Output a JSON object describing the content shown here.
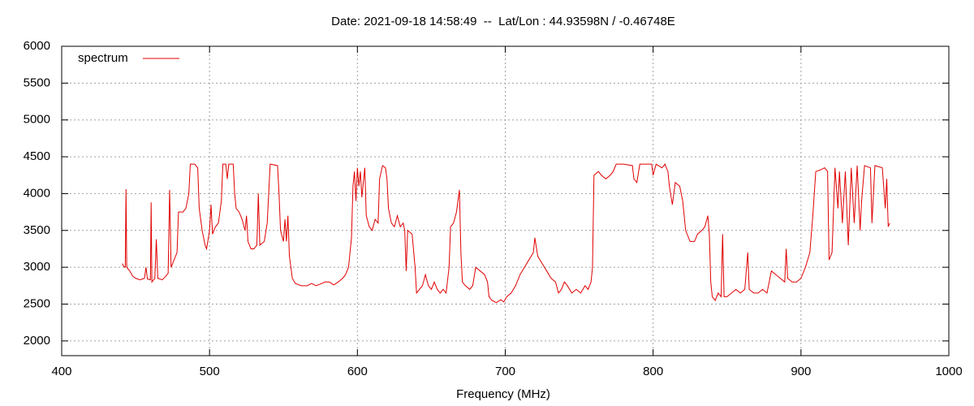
{
  "chart_data": {
    "type": "line",
    "title": "Date: 2021-09-18 14:58:49  --  Lat/Lon : 44.93598N / -0.46748E",
    "xlabel": "Frequency (MHz)",
    "xlim": [
      400,
      1000
    ],
    "xticks": [
      400,
      500,
      600,
      700,
      800,
      900,
      1000
    ],
    "ylim": [
      1800,
      6000
    ],
    "yticks": [
      2000,
      2500,
      3000,
      3500,
      4000,
      4500,
      5000,
      5500,
      6000
    ],
    "grid": true,
    "legend": "top-left",
    "x": [
      441,
      442,
      443,
      443.5,
      444,
      446,
      448,
      450,
      453,
      456,
      457,
      458,
      460,
      460.5,
      461,
      463,
      464,
      465,
      468,
      470,
      472,
      473,
      474,
      476,
      478,
      479,
      482,
      484,
      486,
      487,
      490,
      492,
      493,
      495,
      497,
      498,
      500,
      501,
      502,
      504,
      506,
      508,
      509,
      511,
      512,
      513,
      516,
      517,
      518,
      520,
      522,
      524,
      525,
      526,
      528,
      530,
      532,
      533,
      534,
      537,
      539,
      540,
      541,
      546,
      547,
      548,
      550,
      551,
      552,
      553,
      554,
      556,
      558,
      562,
      566,
      569,
      572,
      576,
      578,
      581,
      584,
      587,
      590,
      592,
      594,
      596,
      597,
      598,
      599,
      600,
      601,
      602,
      603,
      605,
      606,
      608,
      610,
      612,
      614,
      615,
      617,
      619,
      620,
      621,
      623,
      625,
      627,
      629,
      631,
      632,
      633,
      634,
      637,
      639,
      640,
      642,
      644,
      646,
      648,
      650,
      652,
      654,
      656,
      658,
      660,
      662,
      663,
      665,
      667,
      669,
      670,
      671,
      673,
      676,
      678,
      680,
      683,
      686,
      688,
      689,
      691,
      694,
      697,
      699,
      701,
      704,
      707,
      710,
      713,
      716,
      719,
      720,
      722,
      725,
      728,
      731,
      734,
      736,
      738,
      740,
      742,
      745,
      748,
      751,
      754,
      756,
      758,
      759,
      760,
      763,
      765,
      768,
      771,
      773,
      775,
      780,
      786,
      787,
      789,
      791,
      799,
      800,
      802,
      806,
      808,
      810,
      811,
      813,
      815,
      818,
      820,
      822,
      825,
      828,
      830,
      833,
      835,
      837,
      838,
      839,
      840,
      842,
      844,
      846,
      847,
      848,
      850,
      853,
      856,
      859,
      862,
      864,
      865,
      868,
      871,
      874,
      877,
      880,
      883,
      886,
      889,
      890,
      891,
      894,
      897,
      900,
      903,
      906,
      908,
      910,
      913,
      916,
      918,
      919,
      921,
      923,
      925,
      926,
      928,
      930,
      932,
      934,
      936,
      938,
      940,
      941,
      943,
      947,
      948,
      950,
      955,
      957,
      958,
      959,
      960
    ],
    "series": [
      {
        "name": "spectrum",
        "color": "#e00000",
        "values": [
          3050,
          3010,
          3000,
          4060,
          3000,
          2950,
          2880,
          2850,
          2830,
          2850,
          3000,
          2840,
          2830,
          3880,
          2800,
          2850,
          3380,
          2850,
          2830,
          2870,
          2920,
          4050,
          3000,
          3100,
          3200,
          3750,
          3750,
          3800,
          4000,
          4400,
          4400,
          4350,
          3800,
          3500,
          3300,
          3250,
          3500,
          3850,
          3450,
          3550,
          3600,
          3900,
          4400,
          4400,
          4200,
          4400,
          4400,
          4000,
          3800,
          3750,
          3650,
          3500,
          3700,
          3350,
          3250,
          3250,
          3300,
          4000,
          3300,
          3350,
          3600,
          4000,
          4400,
          4380,
          4000,
          3500,
          3350,
          3650,
          3350,
          3700,
          3150,
          2850,
          2780,
          2750,
          2750,
          2780,
          2750,
          2780,
          2800,
          2800,
          2760,
          2800,
          2850,
          2900,
          3000,
          3400,
          4100,
          4300,
          3900,
          4350,
          4100,
          4300,
          3950,
          4350,
          3700,
          3550,
          3500,
          3650,
          3600,
          4200,
          4380,
          4350,
          4200,
          3800,
          3600,
          3550,
          3700,
          3550,
          3600,
          3500,
          2950,
          3500,
          3450,
          3000,
          2650,
          2700,
          2750,
          2900,
          2750,
          2700,
          2800,
          2700,
          2650,
          2700,
          2650,
          3000,
          3550,
          3600,
          3750,
          4050,
          3200,
          2800,
          2750,
          2700,
          2750,
          3000,
          2950,
          2900,
          2800,
          2600,
          2550,
          2520,
          2560,
          2530,
          2600,
          2650,
          2750,
          2900,
          3000,
          3100,
          3200,
          3400,
          3150,
          3050,
          2950,
          2850,
          2800,
          2650,
          2700,
          2800,
          2750,
          2650,
          2700,
          2650,
          2750,
          2700,
          2800,
          3000,
          4250,
          4300,
          4250,
          4200,
          4250,
          4300,
          4400,
          4400,
          4380,
          4200,
          4150,
          4400,
          4400,
          4250,
          4400,
          4350,
          4400,
          4300,
          4100,
          3850,
          4150,
          4100,
          3900,
          3500,
          3350,
          3350,
          3450,
          3500,
          3550,
          3700,
          3450,
          2800,
          2600,
          2550,
          2650,
          2600,
          3450,
          2600,
          2600,
          2650,
          2700,
          2650,
          2700,
          3200,
          2700,
          2650,
          2650,
          2700,
          2650,
          2950,
          2900,
          2850,
          2800,
          3250,
          2850,
          2800,
          2800,
          2850,
          3000,
          3200,
          3700,
          4300,
          4320,
          4350,
          4300,
          3100,
          3200,
          4350,
          3800,
          4300,
          3600,
          4300,
          3300,
          4350,
          3600,
          4380,
          3500,
          3900,
          4380,
          4350,
          3600,
          4380,
          4350,
          3800,
          4200,
          3550,
          3600
        ]
      }
    ]
  }
}
